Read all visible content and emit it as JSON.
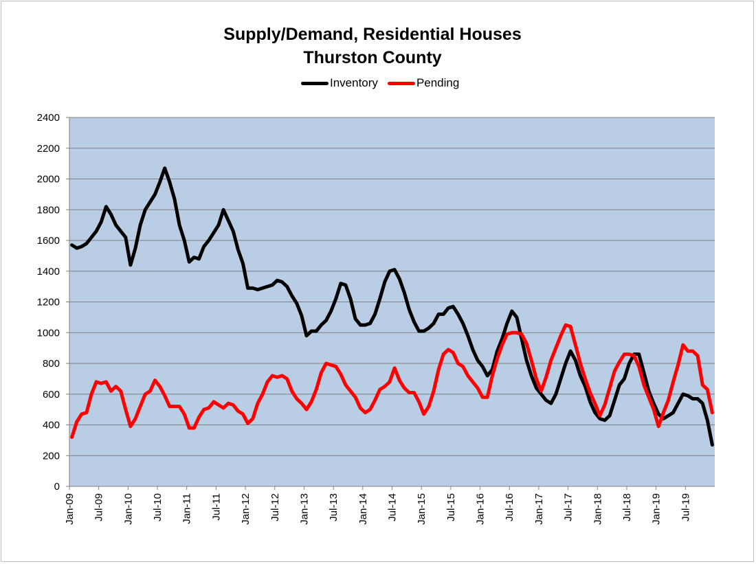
{
  "chart_data": {
    "type": "line",
    "title": "Supply/Demand, Residential Houses",
    "subtitle": "Thurston County",
    "xlabel": "",
    "ylabel": "",
    "ylim": [
      0,
      2400
    ],
    "yticks": [
      0,
      200,
      400,
      600,
      800,
      1000,
      1200,
      1400,
      1600,
      1800,
      2000,
      2200,
      2400
    ],
    "xticks": [
      "Jan-09",
      "Jul-09",
      "Jan-10",
      "Jul-10",
      "Jan-11",
      "Jul-11",
      "Jan-12",
      "Jul-12",
      "Jan-13",
      "Jul-13",
      "Jan-14",
      "Jul-14",
      "Jan-15",
      "Jul-15",
      "Jan-16",
      "Jul-16",
      "Jan-17",
      "Jul-17",
      "Jan-18",
      "Jul-18",
      "Jan-19",
      "Jul-19"
    ],
    "x_range": [
      "2009-01",
      "2019-12"
    ],
    "legend_position": "top-center",
    "grid": true,
    "plot_background": "#b9cde5",
    "series": [
      {
        "name": "Inventory",
        "color": "#000000",
        "points": [
          [
            "2009-01",
            1570
          ],
          [
            "2009-02",
            1550
          ],
          [
            "2009-03",
            1560
          ],
          [
            "2009-04",
            1580
          ],
          [
            "2009-05",
            1620
          ],
          [
            "2009-06",
            1660
          ],
          [
            "2009-07",
            1720
          ],
          [
            "2009-08",
            1820
          ],
          [
            "2009-09",
            1770
          ],
          [
            "2009-10",
            1700
          ],
          [
            "2009-11",
            1660
          ],
          [
            "2009-12",
            1620
          ],
          [
            "2010-01",
            1440
          ],
          [
            "2010-02",
            1550
          ],
          [
            "2010-03",
            1700
          ],
          [
            "2010-04",
            1800
          ],
          [
            "2010-05",
            1850
          ],
          [
            "2010-06",
            1900
          ],
          [
            "2010-07",
            1980
          ],
          [
            "2010-08",
            2070
          ],
          [
            "2010-09",
            1980
          ],
          [
            "2010-10",
            1870
          ],
          [
            "2010-11",
            1700
          ],
          [
            "2010-12",
            1600
          ],
          [
            "2011-01",
            1460
          ],
          [
            "2011-02",
            1490
          ],
          [
            "2011-03",
            1480
          ],
          [
            "2011-04",
            1560
          ],
          [
            "2011-05",
            1600
          ],
          [
            "2011-06",
            1650
          ],
          [
            "2011-07",
            1700
          ],
          [
            "2011-08",
            1800
          ],
          [
            "2011-09",
            1730
          ],
          [
            "2011-10",
            1660
          ],
          [
            "2011-11",
            1540
          ],
          [
            "2011-12",
            1450
          ],
          [
            "2012-01",
            1290
          ],
          [
            "2012-02",
            1290
          ],
          [
            "2012-03",
            1280
          ],
          [
            "2012-04",
            1290
          ],
          [
            "2012-05",
            1300
          ],
          [
            "2012-06",
            1310
          ],
          [
            "2012-07",
            1340
          ],
          [
            "2012-08",
            1330
          ],
          [
            "2012-09",
            1300
          ],
          [
            "2012-10",
            1240
          ],
          [
            "2012-11",
            1190
          ],
          [
            "2012-12",
            1110
          ],
          [
            "2013-01",
            980
          ],
          [
            "2013-02",
            1010
          ],
          [
            "2013-03",
            1010
          ],
          [
            "2013-04",
            1050
          ],
          [
            "2013-05",
            1080
          ],
          [
            "2013-06",
            1140
          ],
          [
            "2013-07",
            1220
          ],
          [
            "2013-08",
            1320
          ],
          [
            "2013-09",
            1310
          ],
          [
            "2013-10",
            1220
          ],
          [
            "2013-11",
            1090
          ],
          [
            "2013-12",
            1050
          ],
          [
            "2014-01",
            1050
          ],
          [
            "2014-02",
            1060
          ],
          [
            "2014-03",
            1120
          ],
          [
            "2014-04",
            1220
          ],
          [
            "2014-05",
            1330
          ],
          [
            "2014-06",
            1400
          ],
          [
            "2014-07",
            1410
          ],
          [
            "2014-08",
            1350
          ],
          [
            "2014-09",
            1260
          ],
          [
            "2014-10",
            1150
          ],
          [
            "2014-11",
            1070
          ],
          [
            "2014-12",
            1010
          ],
          [
            "2015-01",
            1010
          ],
          [
            "2015-02",
            1030
          ],
          [
            "2015-03",
            1060
          ],
          [
            "2015-04",
            1120
          ],
          [
            "2015-05",
            1120
          ],
          [
            "2015-06",
            1160
          ],
          [
            "2015-07",
            1170
          ],
          [
            "2015-08",
            1120
          ],
          [
            "2015-09",
            1060
          ],
          [
            "2015-10",
            980
          ],
          [
            "2015-11",
            890
          ],
          [
            "2015-12",
            820
          ],
          [
            "2016-01",
            780
          ],
          [
            "2016-02",
            720
          ],
          [
            "2016-03",
            760
          ],
          [
            "2016-04",
            880
          ],
          [
            "2016-05",
            960
          ],
          [
            "2016-06",
            1060
          ],
          [
            "2016-07",
            1140
          ],
          [
            "2016-08",
            1100
          ],
          [
            "2016-09",
            960
          ],
          [
            "2016-10",
            820
          ],
          [
            "2016-11",
            720
          ],
          [
            "2016-12",
            640
          ],
          [
            "2017-01",
            600
          ],
          [
            "2017-02",
            560
          ],
          [
            "2017-03",
            540
          ],
          [
            "2017-04",
            600
          ],
          [
            "2017-05",
            700
          ],
          [
            "2017-06",
            800
          ],
          [
            "2017-07",
            880
          ],
          [
            "2017-08",
            820
          ],
          [
            "2017-09",
            720
          ],
          [
            "2017-10",
            650
          ],
          [
            "2017-11",
            550
          ],
          [
            "2017-12",
            480
          ],
          [
            "2018-01",
            440
          ],
          [
            "2018-02",
            430
          ],
          [
            "2018-03",
            460
          ],
          [
            "2018-04",
            560
          ],
          [
            "2018-05",
            660
          ],
          [
            "2018-06",
            700
          ],
          [
            "2018-07",
            800
          ],
          [
            "2018-08",
            860
          ],
          [
            "2018-09",
            860
          ],
          [
            "2018-10",
            740
          ],
          [
            "2018-11",
            620
          ],
          [
            "2018-12",
            540
          ],
          [
            "2019-01",
            470
          ],
          [
            "2019-02",
            440
          ],
          [
            "2019-03",
            460
          ],
          [
            "2019-04",
            480
          ],
          [
            "2019-05",
            540
          ],
          [
            "2019-06",
            600
          ],
          [
            "2019-07",
            590
          ],
          [
            "2019-08",
            570
          ],
          [
            "2019-09",
            570
          ],
          [
            "2019-10",
            540
          ],
          [
            "2019-11",
            430
          ],
          [
            "2019-12",
            270
          ]
        ]
      },
      {
        "name": "Pending",
        "color": "#ff0000",
        "points": [
          [
            "2009-01",
            320
          ],
          [
            "2009-02",
            420
          ],
          [
            "2009-03",
            470
          ],
          [
            "2009-04",
            480
          ],
          [
            "2009-05",
            600
          ],
          [
            "2009-06",
            680
          ],
          [
            "2009-07",
            670
          ],
          [
            "2009-08",
            680
          ],
          [
            "2009-09",
            620
          ],
          [
            "2009-10",
            650
          ],
          [
            "2009-11",
            620
          ],
          [
            "2009-12",
            500
          ],
          [
            "2010-01",
            390
          ],
          [
            "2010-02",
            440
          ],
          [
            "2010-03",
            520
          ],
          [
            "2010-04",
            600
          ],
          [
            "2010-05",
            620
          ],
          [
            "2010-06",
            690
          ],
          [
            "2010-07",
            650
          ],
          [
            "2010-08",
            590
          ],
          [
            "2010-09",
            520
          ],
          [
            "2010-10",
            520
          ],
          [
            "2010-11",
            520
          ],
          [
            "2010-12",
            470
          ],
          [
            "2011-01",
            380
          ],
          [
            "2011-02",
            380
          ],
          [
            "2011-03",
            450
          ],
          [
            "2011-04",
            500
          ],
          [
            "2011-05",
            510
          ],
          [
            "2011-06",
            550
          ],
          [
            "2011-07",
            530
          ],
          [
            "2011-08",
            510
          ],
          [
            "2011-09",
            540
          ],
          [
            "2011-10",
            530
          ],
          [
            "2011-11",
            490
          ],
          [
            "2011-12",
            470
          ],
          [
            "2012-01",
            410
          ],
          [
            "2012-02",
            440
          ],
          [
            "2012-03",
            540
          ],
          [
            "2012-04",
            600
          ],
          [
            "2012-05",
            680
          ],
          [
            "2012-06",
            720
          ],
          [
            "2012-07",
            710
          ],
          [
            "2012-08",
            720
          ],
          [
            "2012-09",
            700
          ],
          [
            "2012-10",
            620
          ],
          [
            "2012-11",
            570
          ],
          [
            "2012-12",
            540
          ],
          [
            "2013-01",
            500
          ],
          [
            "2013-02",
            550
          ],
          [
            "2013-03",
            630
          ],
          [
            "2013-04",
            740
          ],
          [
            "2013-05",
            800
          ],
          [
            "2013-06",
            790
          ],
          [
            "2013-07",
            780
          ],
          [
            "2013-08",
            730
          ],
          [
            "2013-09",
            660
          ],
          [
            "2013-10",
            620
          ],
          [
            "2013-11",
            580
          ],
          [
            "2013-12",
            510
          ],
          [
            "2014-01",
            480
          ],
          [
            "2014-02",
            500
          ],
          [
            "2014-03",
            560
          ],
          [
            "2014-04",
            630
          ],
          [
            "2014-05",
            650
          ],
          [
            "2014-06",
            680
          ],
          [
            "2014-07",
            770
          ],
          [
            "2014-08",
            690
          ],
          [
            "2014-09",
            640
          ],
          [
            "2014-10",
            610
          ],
          [
            "2014-11",
            610
          ],
          [
            "2014-12",
            550
          ],
          [
            "2015-01",
            470
          ],
          [
            "2015-02",
            520
          ],
          [
            "2015-03",
            620
          ],
          [
            "2015-04",
            760
          ],
          [
            "2015-05",
            860
          ],
          [
            "2015-06",
            890
          ],
          [
            "2015-07",
            870
          ],
          [
            "2015-08",
            800
          ],
          [
            "2015-09",
            780
          ],
          [
            "2015-10",
            720
          ],
          [
            "2015-11",
            680
          ],
          [
            "2015-12",
            640
          ],
          [
            "2016-01",
            580
          ],
          [
            "2016-02",
            580
          ],
          [
            "2016-03",
            720
          ],
          [
            "2016-04",
            830
          ],
          [
            "2016-05",
            920
          ],
          [
            "2016-06",
            990
          ],
          [
            "2016-07",
            1000
          ],
          [
            "2016-08",
            1000
          ],
          [
            "2016-09",
            990
          ],
          [
            "2016-10",
            930
          ],
          [
            "2016-11",
            820
          ],
          [
            "2016-12",
            700
          ],
          [
            "2017-01",
            620
          ],
          [
            "2017-02",
            710
          ],
          [
            "2017-03",
            820
          ],
          [
            "2017-04",
            900
          ],
          [
            "2017-05",
            980
          ],
          [
            "2017-06",
            1050
          ],
          [
            "2017-07",
            1040
          ],
          [
            "2017-08",
            920
          ],
          [
            "2017-09",
            800
          ],
          [
            "2017-10",
            700
          ],
          [
            "2017-11",
            610
          ],
          [
            "2017-12",
            540
          ],
          [
            "2018-01",
            460
          ],
          [
            "2018-02",
            530
          ],
          [
            "2018-03",
            640
          ],
          [
            "2018-04",
            750
          ],
          [
            "2018-05",
            810
          ],
          [
            "2018-06",
            860
          ],
          [
            "2018-07",
            860
          ],
          [
            "2018-08",
            850
          ],
          [
            "2018-09",
            780
          ],
          [
            "2018-10",
            660
          ],
          [
            "2018-11",
            580
          ],
          [
            "2018-12",
            500
          ],
          [
            "2019-01",
            390
          ],
          [
            "2019-02",
            480
          ],
          [
            "2019-03",
            560
          ],
          [
            "2019-04",
            680
          ],
          [
            "2019-05",
            790
          ],
          [
            "2019-06",
            920
          ],
          [
            "2019-07",
            880
          ],
          [
            "2019-08",
            880
          ],
          [
            "2019-09",
            850
          ],
          [
            "2019-10",
            660
          ],
          [
            "2019-11",
            630
          ],
          [
            "2019-12",
            480
          ]
        ]
      }
    ]
  }
}
